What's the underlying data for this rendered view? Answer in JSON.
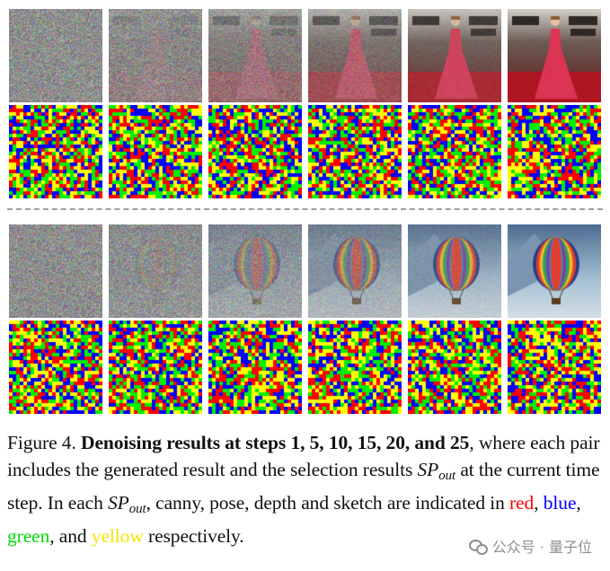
{
  "figure": {
    "steps": [
      "1",
      "5",
      "10",
      "15",
      "20",
      "25"
    ],
    "examples": [
      {
        "image_rows": [
          {
            "kind": "generated",
            "subject": "woman-in-red-gown",
            "noise_levels": [
              1.0,
              0.9,
              0.72,
              0.5,
              0.22,
              0.05
            ]
          },
          {
            "kind": "selection-map",
            "noise_levels": [
              1,
              1,
              1,
              1,
              1,
              1
            ]
          }
        ]
      },
      {
        "image_rows": [
          {
            "kind": "generated",
            "subject": "hot-air-balloon",
            "noise_levels": [
              1.0,
              0.92,
              0.7,
              0.5,
              0.25,
              0.05
            ]
          },
          {
            "kind": "selection-map",
            "noise_levels": [
              1,
              1,
              1,
              1,
              1,
              1
            ]
          }
        ]
      }
    ],
    "selection_colors": {
      "canny": "#ff0000",
      "pose": "#0000ff",
      "depth": "#00ee00",
      "sketch": "#ffff00"
    }
  },
  "caption": {
    "label": "Figure 4.",
    "bold": "Denoising results at steps 1, 5, 10, 15, 20, and 25",
    "text1": ", where each pair includes the generated result and the selection results ",
    "sp": "SP",
    "out": "out",
    "text2": " at the current time step. In each ",
    "text3": ", canny, pose, depth and sketch are indicated in ",
    "red": "red",
    "comma1": ", ",
    "blue": "blue",
    "comma2": ", ",
    "green": "green",
    "and": ", and ",
    "yellow": "yellow",
    "end": " respectively."
  },
  "watermark": {
    "text": "公众号 · 量子位"
  }
}
